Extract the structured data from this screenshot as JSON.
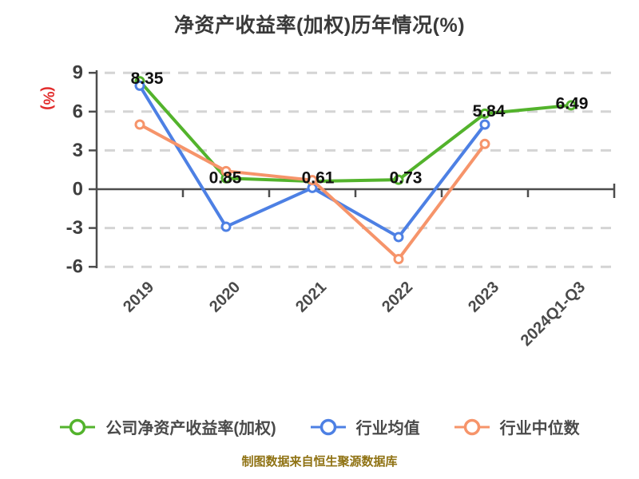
{
  "chart_data": {
    "type": "line",
    "title": "净资产收益率(加权)历年情况(%)",
    "ylabel": "(%)",
    "xlabel": "",
    "categories": [
      "2019",
      "2020",
      "2021",
      "2022",
      "2023",
      "2024Q1-Q3"
    ],
    "series": [
      {
        "name": "公司净资产收益率(加权)",
        "color": "#53b32c",
        "values": [
          8.35,
          0.85,
          0.61,
          0.73,
          5.84,
          6.49
        ],
        "labels": [
          "8.35",
          "0.85",
          "0.61",
          "0.73",
          "5.84",
          "6.49"
        ]
      },
      {
        "name": "行业均值",
        "color": "#4d80e4",
        "values": [
          8.0,
          -2.9,
          0.1,
          -3.7,
          5.0
        ]
      },
      {
        "name": "行业中位数",
        "color": "#f6946a",
        "values": [
          5.0,
          1.4,
          0.7,
          -5.4,
          3.5
        ]
      }
    ],
    "y_ticks": [
      9,
      6,
      3,
      0,
      -3,
      -6
    ],
    "ylim": [
      -6,
      9
    ],
    "grid": "horizontal-dashed",
    "legend_position": "bottom",
    "marker": "circle-white-fill"
  },
  "colors": {
    "grid": "#d4d4d4",
    "axis": "#4d4d4d",
    "y_tick_label": "#3f3f3f",
    "x_tick_label": "#4a4a4a",
    "data_label": "#111111",
    "ylabel_red": "#e22c2c",
    "title": "#3a3a3a",
    "footer_gold": "#8f7213",
    "marker_fill": "#ffffff"
  },
  "footer": {
    "text": "制图数据来自恒生聚源数据库"
  }
}
